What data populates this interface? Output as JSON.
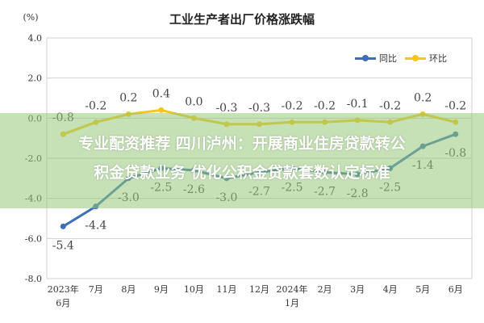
{
  "chart_data": {
    "type": "line",
    "title": "工业生产者出厂价格涨跌幅",
    "ylabel": "(%)",
    "ylim": [
      -8.0,
      4.0
    ],
    "yticks": [
      "4.0",
      "2.0",
      "0.0",
      "-2.0",
      "-4.0",
      "-6.0",
      "-8.0"
    ],
    "categories": [
      "2023年6月",
      "7月",
      "8月",
      "9月",
      "10月",
      "11月",
      "12月",
      "2024年1月",
      "2月",
      "3月",
      "4月",
      "5月",
      "6月"
    ],
    "category_labels": [
      [
        "2023年",
        "6月"
      ],
      [
        "7月"
      ],
      [
        "8月"
      ],
      [
        "9月"
      ],
      [
        "10月"
      ],
      [
        "11月"
      ],
      [
        "12月"
      ],
      [
        "2024年",
        "1月"
      ],
      [
        "2月"
      ],
      [
        "3月"
      ],
      [
        "4月"
      ],
      [
        "5月"
      ],
      [
        "6月"
      ]
    ],
    "series": [
      {
        "name": "同比",
        "color": "#3b6fb6",
        "values": [
          -5.4,
          -4.4,
          -3.0,
          -2.5,
          -2.6,
          -3.0,
          -2.7,
          -2.5,
          -2.7,
          -2.8,
          -2.5,
          -1.4,
          -0.8
        ],
        "labels": [
          "-5.4",
          "-4.4",
          "-3.0",
          "-2.5",
          "-2.6",
          "-3.0",
          "-2.7",
          "-2.5",
          "-2.7",
          "-2.8",
          "-2.5",
          "-1.4",
          "-0.8"
        ]
      },
      {
        "name": "环比",
        "color": "#f5c518",
        "values": [
          -0.8,
          -0.2,
          0.2,
          0.4,
          0.0,
          -0.3,
          -0.3,
          -0.2,
          -0.2,
          -0.1,
          -0.2,
          0.2,
          -0.2
        ],
        "labels": [
          "-0.8",
          "-0.2",
          "0.2",
          "0.4",
          "0.0",
          "-0.3",
          "-0.3",
          "-0.2",
          "-0.2",
          "-0.1",
          "-0.2",
          "0.2",
          "-0.2"
        ]
      }
    ],
    "grid": true,
    "legend_position": "top-right"
  },
  "overlay": {
    "headline_line1": "专业配资推荐 四川泸州：开展商业住房贷款转公",
    "headline_line2": "积金贷款业务 优化公积金贷款套数认定标准",
    "color": "#96c878"
  }
}
